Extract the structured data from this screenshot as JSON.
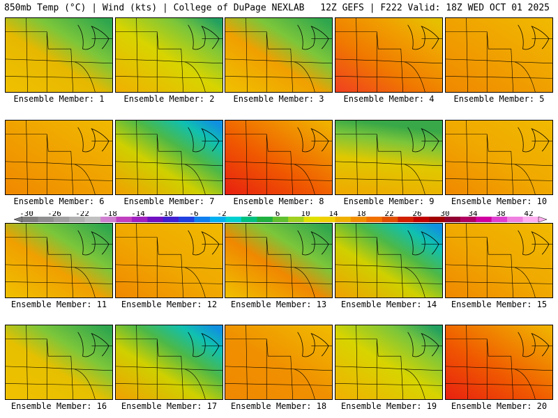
{
  "header": {
    "title": "850mb Temp (°C) | Wind (kts) | College of DuPage NEXLAB",
    "run_info": "12Z GEFS | F222 Valid: 18Z WED OCT 01 2025"
  },
  "panels": [
    {
      "label": "Ensemble Member: 1",
      "scheme": "cool-ne",
      "tint": "#e6b800"
    },
    {
      "label": "Ensemble Member: 2",
      "scheme": "cool-n",
      "tint": "#e6c400"
    },
    {
      "label": "Ensemble Member: 3",
      "scheme": "cool-ne",
      "tint": "#f0a000"
    },
    {
      "label": "Ensemble Member: 4",
      "scheme": "warm-w",
      "tint": "#f08800"
    },
    {
      "label": "Ensemble Member: 5",
      "scheme": "warm",
      "tint": "#f0a000"
    },
    {
      "label": "Ensemble Member: 6",
      "scheme": "warm",
      "tint": "#f0a000"
    },
    {
      "label": "Ensemble Member: 7",
      "scheme": "cold-ne",
      "tint": "#e6c000"
    },
    {
      "label": "Ensemble Member: 8",
      "scheme": "hot",
      "tint": "#f07000"
    },
    {
      "label": "Ensemble Member: 9",
      "scheme": "cool-nw",
      "tint": "#e6b800"
    },
    {
      "label": "Ensemble Member: 10",
      "scheme": "warm",
      "tint": "#f0a800"
    },
    {
      "label": "Ensemble Member: 11",
      "scheme": "cool-ne",
      "tint": "#f0a000"
    },
    {
      "label": "Ensemble Member: 12",
      "scheme": "warm",
      "tint": "#f0a800"
    },
    {
      "label": "Ensemble Member: 13",
      "scheme": "cool-ne",
      "tint": "#f08800"
    },
    {
      "label": "Ensemble Member: 14",
      "scheme": "cold-ne",
      "tint": "#e6a800"
    },
    {
      "label": "Ensemble Member: 15",
      "scheme": "warm",
      "tint": "#f0a800"
    },
    {
      "label": "Ensemble Member: 16",
      "scheme": "cool-ne",
      "tint": "#e6c000"
    },
    {
      "label": "Ensemble Member: 17",
      "scheme": "cold-ne",
      "tint": "#e6b800"
    },
    {
      "label": "Ensemble Member: 18",
      "scheme": "warm",
      "tint": "#f09000"
    },
    {
      "label": "Ensemble Member: 19",
      "scheme": "cool-n",
      "tint": "#e6b800"
    },
    {
      "label": "Ensemble Member: 20",
      "scheme": "hot",
      "tint": "#f08000"
    }
  ],
  "colorbar": {
    "labels": [
      "-30",
      "-26",
      "-22",
      "-18",
      "-14",
      "-10",
      "-6",
      "-2",
      "2",
      "6",
      "10",
      "14",
      "18",
      "22",
      "26",
      "30",
      "34",
      "38",
      "42"
    ],
    "colors": [
      "#7f7f7f",
      "#8f8f8f",
      "#a0a0a0",
      "#b0b0b0",
      "#c0c0c0",
      "#d080d0",
      "#c040c0",
      "#a020c0",
      "#7010c0",
      "#4020d0",
      "#2040e0",
      "#1080f0",
      "#00b0f0",
      "#00d0d0",
      "#00c080",
      "#20b040",
      "#60c030",
      "#a0d020",
      "#e0e000",
      "#f0d000",
      "#f0b000",
      "#f09000",
      "#f07000",
      "#e05000",
      "#d02000",
      "#c00000",
      "#a00000",
      "#900030",
      "#b00060",
      "#d000a0",
      "#e040d0",
      "#f080e0",
      "#ffb0f0"
    ]
  }
}
